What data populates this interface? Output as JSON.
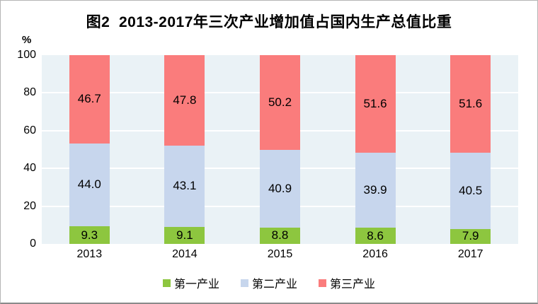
{
  "title": "图2  2013-2017年三次产业增加值占国内生产总值比重",
  "y_axis_unit": "%",
  "chart_data": {
    "type": "bar",
    "stacked": true,
    "title": "图2  2013-2017年三次产业增加值占国内生产总值比重",
    "xlabel": "",
    "ylabel": "%",
    "ylim": [
      0,
      100
    ],
    "yticks": [
      0,
      20,
      40,
      60,
      80,
      100
    ],
    "grid": true,
    "gridline_color": "#ffffff",
    "plot_background": "#eaf2f6",
    "legend_position": "bottom",
    "categories": [
      "2013",
      "2014",
      "2015",
      "2016",
      "2017"
    ],
    "series": [
      {
        "name": "第一产业",
        "color": "#8dc63f",
        "values": [
          9.3,
          9.1,
          8.8,
          8.6,
          7.9
        ],
        "labels": [
          "9.3",
          "9.1",
          "8.8",
          "8.6",
          "7.9"
        ]
      },
      {
        "name": "第二产业",
        "color": "#c7d6ed",
        "values": [
          44.0,
          43.1,
          40.9,
          39.9,
          40.5
        ],
        "labels": [
          "44.0",
          "43.1",
          "40.9",
          "39.9",
          "40.5"
        ]
      },
      {
        "name": "第三产业",
        "color": "#fa7c7c",
        "values": [
          46.7,
          47.8,
          50.2,
          51.6,
          51.6
        ],
        "labels": [
          "46.7",
          "47.8",
          "50.2",
          "51.6",
          "51.6"
        ]
      }
    ]
  }
}
